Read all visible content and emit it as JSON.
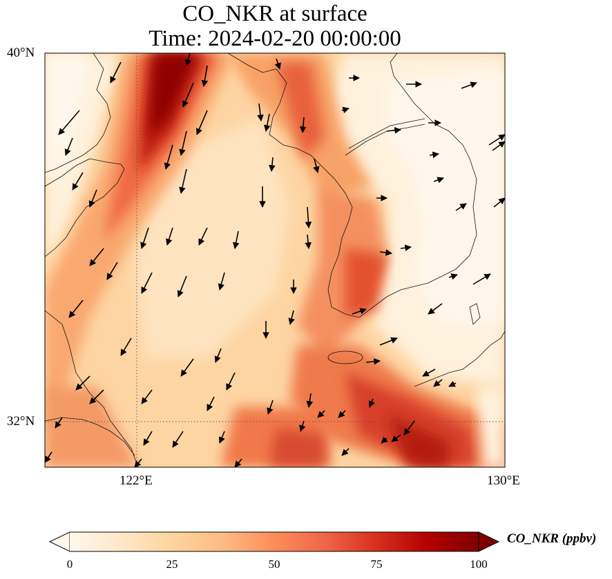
{
  "title": {
    "line1": "CO_NKR at surface",
    "line2": "Time: 2024-02-20 00:00:00"
  },
  "map": {
    "projection": "PlateCarree",
    "lon_range": [
      118,
      130
    ],
    "lat_range": [
      30.8,
      40
    ],
    "gridlines": {
      "style": "dotted",
      "lons": [
        122
      ],
      "lats": [
        32
      ]
    },
    "lat_labels": [
      "40°N",
      "32°N"
    ],
    "lon_labels": [
      "122°E",
      "130°E"
    ],
    "field": {
      "variable": "CO_NKR",
      "units": "ppbv",
      "level": "surface",
      "colormap": "OrRd",
      "description": "high-concentration plumes along the Chinese coast (Bohai), the western Korean coast and the Korea Strait / East China Sea; low values over the Yellow Sea and inland Korea"
    },
    "wind_vectors": {
      "prevailing_direction": "northerly over the sea, westerly near Korea"
    }
  },
  "colorbar": {
    "label": "CO_NKR (ppbv)",
    "ticks": [
      "0",
      "25",
      "50",
      "75",
      "100"
    ],
    "min": 0,
    "max": 100,
    "extend": "both"
  }
}
